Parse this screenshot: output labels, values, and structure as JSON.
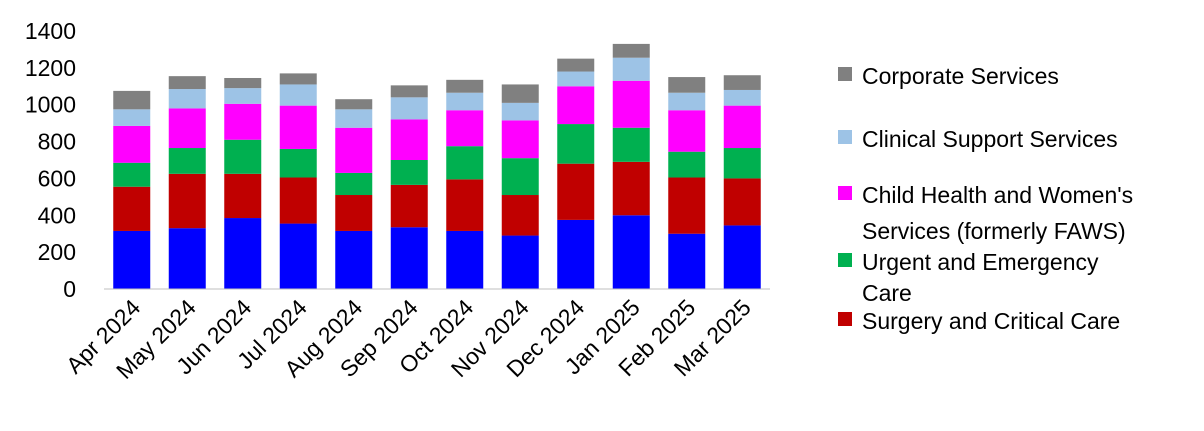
{
  "chart_data": {
    "type": "bar",
    "stacked": true,
    "title": "",
    "xlabel": "",
    "ylabel": "",
    "ylim": [
      0,
      1400
    ],
    "yticks": [
      0,
      200,
      400,
      600,
      800,
      1000,
      1200,
      1400
    ],
    "grid": false,
    "legend_position": "right",
    "categories": [
      "Apr 2024",
      "May 2024",
      "Jun 2024",
      "Jul 2024",
      "Aug 2024",
      "Sep 2024",
      "Oct 2024",
      "Nov 2024",
      "Dec 2024",
      "Jan 2025",
      "Feb 2025",
      "Mar 2025"
    ],
    "series": [
      {
        "color": "#0000ff",
        "values": [
          315,
          330,
          385,
          355,
          315,
          335,
          315,
          290,
          375,
          400,
          300,
          345
        ]
      },
      {
        "name": "Surgery and Critical Care",
        "color": "#c00000",
        "values": [
          240,
          295,
          240,
          250,
          195,
          230,
          280,
          220,
          305,
          290,
          305,
          255
        ]
      },
      {
        "name": "Urgent and Emergency Care",
        "color": "#00b050",
        "values": [
          130,
          140,
          185,
          155,
          120,
          135,
          180,
          200,
          215,
          185,
          140,
          165
        ]
      },
      {
        "name": "Child Health and Women's Services (formerly FAWS)",
        "color": "#ff00ff",
        "values": [
          200,
          215,
          195,
          235,
          245,
          220,
          195,
          205,
          205,
          255,
          225,
          230
        ]
      },
      {
        "name": "Clinical Support Services",
        "color": "#9dc3e6",
        "values": [
          90,
          105,
          85,
          115,
          100,
          120,
          95,
          95,
          80,
          125,
          95,
          85
        ]
      },
      {
        "name": "Corporate Services",
        "color": "#808080",
        "values": [
          100,
          70,
          55,
          60,
          55,
          65,
          70,
          100,
          70,
          75,
          85,
          80
        ]
      }
    ]
  }
}
